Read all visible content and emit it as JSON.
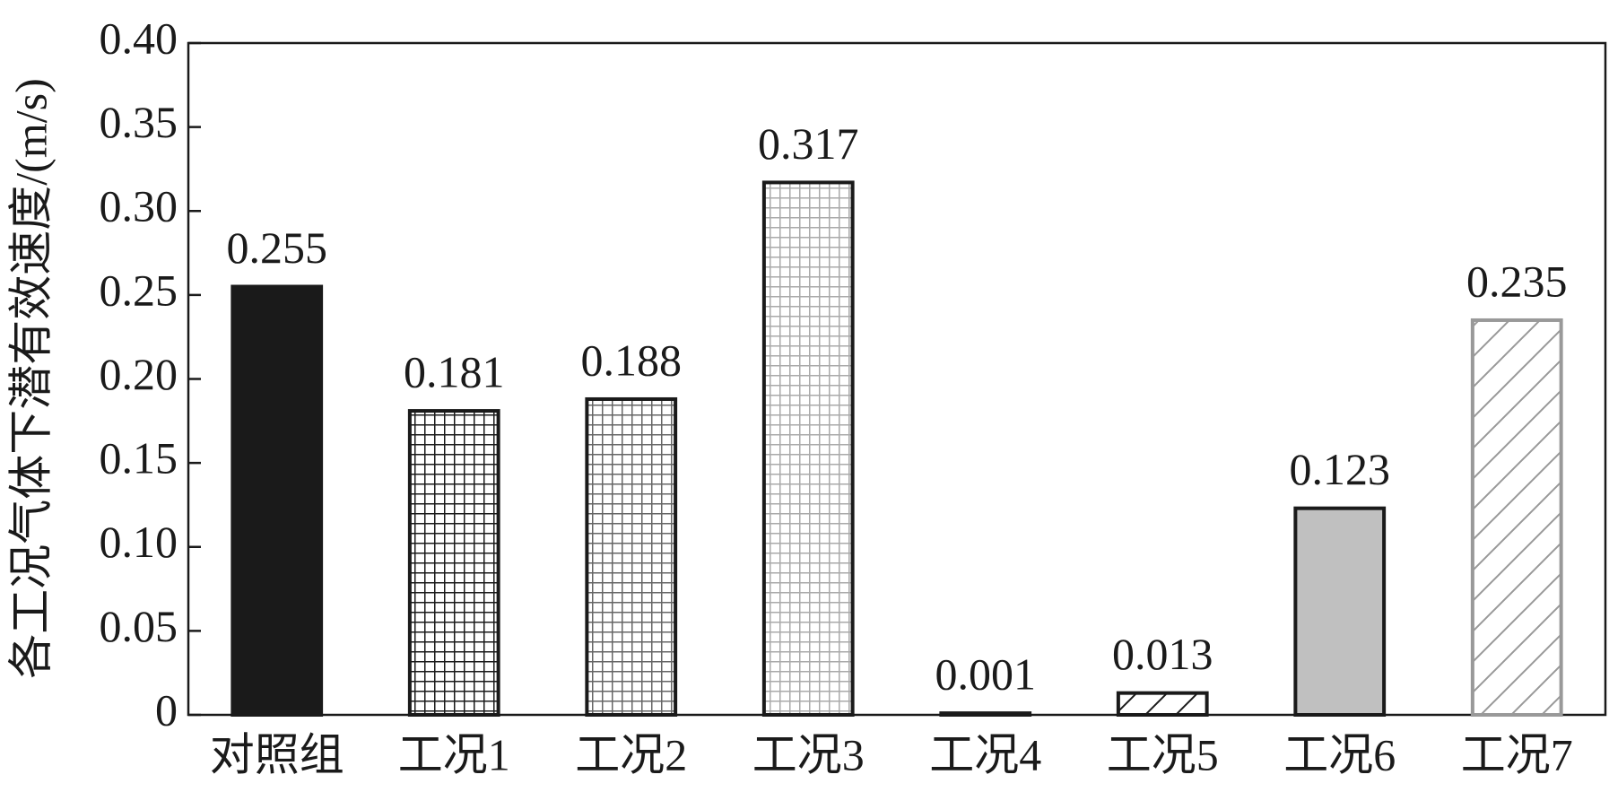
{
  "chart_data": {
    "type": "bar",
    "y_label": "各工况气体下潜有效速度/(m/s)",
    "categories": [
      "对照组",
      "工况1",
      "工况2",
      "工况3",
      "工况4",
      "工况5",
      "工况6",
      "工况7"
    ],
    "values": [
      0.255,
      0.181,
      0.188,
      0.317,
      0.001,
      0.013,
      0.123,
      0.235
    ],
    "bar_styles": [
      {
        "pattern": "solid",
        "fill": "#1a1a1a",
        "stroke": "#1a1a1a"
      },
      {
        "pattern": "grid",
        "fill": "#1a1a1a",
        "stroke": "#1a1a1a"
      },
      {
        "pattern": "grid",
        "fill": "#666666",
        "stroke": "#1a1a1a"
      },
      {
        "pattern": "grid",
        "fill": "#aaaaaa",
        "stroke": "#1a1a1a"
      },
      {
        "pattern": "solid",
        "fill": "#1a1a1a",
        "stroke": "#1a1a1a"
      },
      {
        "pattern": "hatch",
        "fill": "#1a1a1a",
        "stroke": "#1a1a1a"
      },
      {
        "pattern": "solid",
        "fill": "#c0c0c0",
        "stroke": "#1a1a1a"
      },
      {
        "pattern": "hatch",
        "fill": "#999999",
        "stroke": "#999999"
      }
    ],
    "ylim": [
      0,
      0.4
    ],
    "yticks": [
      0,
      0.05,
      {
        "value": 0.1,
        "label": "0.10"
      },
      0.15,
      {
        "value": 0.2,
        "label": "0.20"
      },
      0.25,
      {
        "value": 0.3,
        "label": "0.30"
      },
      0.35,
      {
        "value": 0.4,
        "label": "0.40"
      }
    ]
  }
}
